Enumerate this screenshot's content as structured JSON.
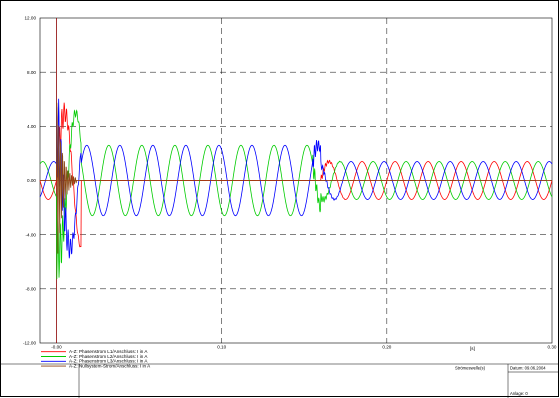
{
  "chart_data": {
    "type": "line",
    "xlabel": "[s]",
    "xlim": [
      -0.01,
      0.3
    ],
    "ylim": [
      -12.0,
      12.0
    ],
    "grid": true,
    "y_ticks": [
      "12.00",
      "8.00",
      "4.00",
      "0.00",
      "-4.00",
      "-8.00",
      "-12.00"
    ],
    "y_tick_values": [
      12,
      8,
      4,
      0,
      -4,
      -8,
      -12
    ],
    "x_ticks": [
      "-0.00",
      "0.10",
      "0.20",
      "0.30"
    ],
    "x_tick_values": [
      0.0,
      0.1,
      0.2,
      0.3
    ],
    "frequency_hz": 50,
    "segments": [
      {
        "from": -0.01,
        "to": 0.0,
        "amplitude": 1.4
      },
      {
        "from": 0.0,
        "to": 0.015,
        "amplitude": 5.0
      },
      {
        "from": 0.015,
        "to": 0.16,
        "amplitude": 2.6
      },
      {
        "from": 0.16,
        "to": 0.3,
        "amplitude": 1.4
      }
    ],
    "series": [
      {
        "name": "A-Z: Phasenstrom L1/Anschluss: I in A",
        "color": "#ff0000",
        "phase_deg": 0,
        "values_note": ""
      },
      {
        "name": "A-Z: Phasenstrom L2/Anschluss: I in A",
        "color": "#00cc00",
        "phase_deg": -120
      },
      {
        "name": "A-Z: Phasenstrom L3/Anschluss: I in A",
        "color": "#0000ff",
        "phase_deg": 120
      },
      {
        "name": "A-Z: Nullsystem-Strom/Anschluss: I in A",
        "color": "#8b4513",
        "phase_deg": 0
      }
    ],
    "fault_window": [
      0.0,
      0.16
    ],
    "phase_L1_fault_amplitude": 0.0
  },
  "footer": {
    "title_block": "Strömeswelle(s)",
    "date_label": "Datum: 09.06.2004",
    "annex_label": "Anlage: 0"
  },
  "colors": {
    "L1": "#ff0000",
    "L2": "#00cc00",
    "L3": "#0000ff",
    "N": "#8b4513",
    "grid": "#000000"
  }
}
